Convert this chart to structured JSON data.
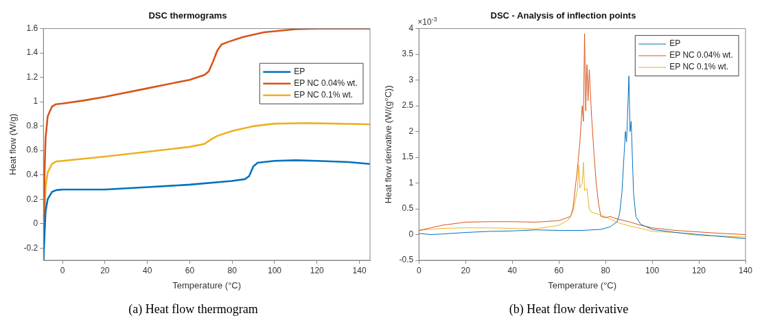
{
  "chart_data": [
    {
      "type": "line",
      "title": "DSC thermograms",
      "xlabel": "Temperature (°C)",
      "ylabel": "Heat flow (W/g)",
      "xlim": [
        -9,
        145
      ],
      "xticks": [
        0,
        20,
        40,
        60,
        80,
        100,
        120,
        140
      ],
      "ylim": [
        -0.3,
        1.6
      ],
      "yticks": [
        -0.2,
        0,
        0.2,
        0.4,
        0.6,
        0.8,
        1,
        1.2,
        1.4,
        1.6
      ],
      "grid": false,
      "legend": "top right",
      "marker": "none",
      "annotations": [
        "(a) Heat flow thermogram"
      ],
      "series": [
        {
          "name": "EP",
          "color": "#0072bd",
          "x": [
            -9,
            -8,
            -7,
            -5,
            -3,
            0,
            20,
            40,
            60,
            80,
            86,
            88,
            90,
            92,
            100,
            110,
            120,
            135,
            145
          ],
          "values": [
            -0.3,
            0.1,
            0.2,
            0.26,
            0.275,
            0.28,
            0.28,
            0.3,
            0.32,
            0.35,
            0.365,
            0.39,
            0.47,
            0.5,
            0.515,
            0.52,
            0.515,
            0.505,
            0.49
          ]
        },
        {
          "name": "EP NC 0.04% wt.",
          "color": "#d95319",
          "x": [
            -9,
            -8.5,
            -8,
            -7,
            -5,
            -3,
            0,
            10,
            20,
            40,
            60,
            67,
            69,
            71,
            73,
            75,
            78,
            85,
            95,
            110,
            120,
            145
          ],
          "values": [
            -0.3,
            0.4,
            0.7,
            0.88,
            0.96,
            0.98,
            0.985,
            1.01,
            1.04,
            1.11,
            1.18,
            1.22,
            1.25,
            1.33,
            1.42,
            1.47,
            1.49,
            1.53,
            1.57,
            1.595,
            1.6,
            1.6
          ]
        },
        {
          "name": "EP NC 0.1% wt.",
          "color": "#edb120",
          "x": [
            -9,
            -8,
            -7,
            -5,
            -3,
            0,
            20,
            40,
            60,
            67,
            70,
            73,
            80,
            90,
            100,
            115,
            130,
            145
          ],
          "values": [
            -0.3,
            0.3,
            0.42,
            0.49,
            0.51,
            0.515,
            0.55,
            0.59,
            0.63,
            0.655,
            0.69,
            0.72,
            0.76,
            0.8,
            0.82,
            0.825,
            0.82,
            0.815
          ]
        }
      ]
    },
    {
      "type": "line",
      "title": "DSC - Analysis of inflection points",
      "xlabel": "Temperature (°C)",
      "ylabel": "Heat flow derivative (W/(g°C))",
      "xlim": [
        0,
        140
      ],
      "xticks": [
        0,
        20,
        40,
        60,
        80,
        100,
        120,
        140
      ],
      "ylim": [
        -0.5,
        4
      ],
      "yticks": [
        -0.5,
        0,
        0.5,
        1,
        1.5,
        2,
        2.5,
        3,
        3.5,
        4
      ],
      "grid": false,
      "legend": "top right",
      "marker": "none",
      "annotations": [
        "×10$^{-3}$",
        "(b) Heat flow derivative"
      ],
      "series": [
        {
          "name": "EP",
          "color": "#0072bd",
          "x": [
            0,
            5,
            10,
            20,
            30,
            40,
            50,
            60,
            70,
            78,
            82,
            85,
            86,
            87,
            88,
            88.5,
            89,
            89.5,
            90,
            90.5,
            91,
            91.5,
            92,
            93,
            95,
            100,
            110,
            120,
            130,
            140
          ],
          "values": [
            0.02,
            0,
            0.01,
            0.04,
            0.06,
            0.07,
            0.09,
            0.08,
            0.08,
            0.1,
            0.15,
            0.25,
            0.4,
            0.8,
            1.6,
            2.0,
            1.8,
            2.4,
            3.08,
            2.0,
            2.2,
            1.5,
            0.8,
            0.35,
            0.2,
            0.1,
            0.04,
            0,
            -0.04,
            -0.08
          ]
        },
        {
          "name": "EP NC 0.04% wt.",
          "color": "#d95319",
          "x": [
            0,
            10,
            20,
            30,
            40,
            50,
            60,
            65,
            66,
            67,
            68,
            69,
            70,
            70.5,
            71,
            71.5,
            72,
            72.5,
            73,
            74,
            75,
            76,
            77,
            78,
            80,
            82,
            85,
            90,
            95,
            100,
            110,
            120,
            130,
            140
          ],
          "values": [
            0.08,
            0.18,
            0.24,
            0.25,
            0.25,
            0.24,
            0.27,
            0.35,
            0.5,
            0.9,
            1.3,
            1.8,
            2.5,
            2.2,
            3.9,
            2.4,
            3.3,
            2.6,
            3.2,
            2.3,
            1.6,
            1.0,
            0.6,
            0.35,
            0.33,
            0.35,
            0.3,
            0.25,
            0.18,
            0.13,
            0.08,
            0.05,
            0.02,
            0
          ]
        },
        {
          "name": "EP NC 0.1% wt.",
          "color": "#edb120",
          "x": [
            0,
            10,
            20,
            30,
            40,
            50,
            60,
            64,
            66,
            67,
            68,
            68.5,
            69,
            70,
            70.5,
            71,
            72,
            73,
            74,
            78,
            82,
            86,
            90,
            95,
            100,
            110,
            120,
            130,
            140
          ],
          "values": [
            0.08,
            0.12,
            0.13,
            0.13,
            0.12,
            0.11,
            0.18,
            0.28,
            0.45,
            0.65,
            0.9,
            1.35,
            0.9,
            1.0,
            1.4,
            0.85,
            0.9,
            0.5,
            0.43,
            0.38,
            0.3,
            0.22,
            0.17,
            0.12,
            0.06,
            0.04,
            -0.02,
            -0.03,
            -0.05
          ]
        }
      ]
    }
  ]
}
